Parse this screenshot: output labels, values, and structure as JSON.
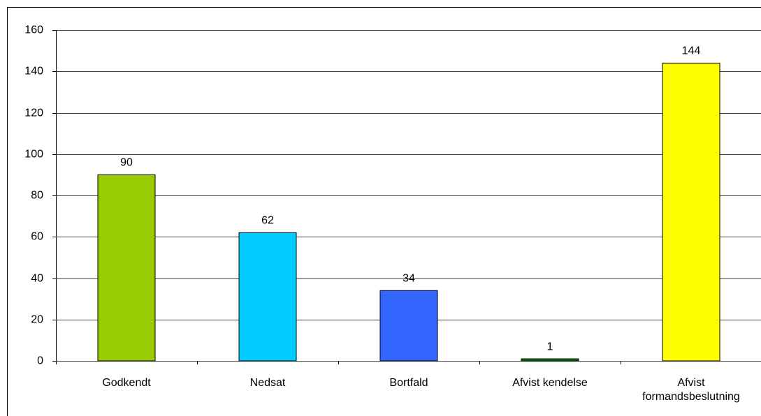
{
  "chart_data": {
    "type": "bar",
    "categories": [
      "Godkendt",
      "Nedsat",
      "Bortfald",
      "Afvist kendelse",
      "Afvist\nformandsbeslutning"
    ],
    "values": [
      90,
      62,
      34,
      1,
      144
    ],
    "colors": [
      "#99cc00",
      "#00ccff",
      "#3366ff",
      "#008000",
      "#ffff00"
    ],
    "ylim": [
      0,
      160
    ],
    "yticks": [
      0,
      20,
      40,
      60,
      80,
      100,
      120,
      140,
      160
    ],
    "grid": true
  }
}
